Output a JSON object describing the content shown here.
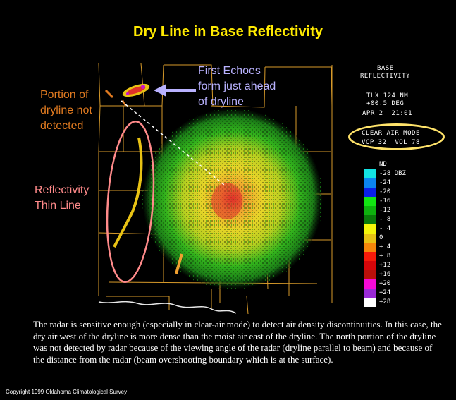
{
  "title": "Dry Line in Base Reflectivity",
  "annotations": {
    "dryline_not_detected": [
      "Portion of",
      "dryline not",
      "detected"
    ],
    "first_echoes": [
      "First Echoes",
      "form just ahead",
      "of dryline"
    ],
    "thin_line": [
      "Reflectivity",
      "Thin Line"
    ]
  },
  "radar_info": {
    "header_line1": "BASE",
    "header_line2": "REFLECTIVITY",
    "radar_id": "TLX 124 NM",
    "elevation": "+00.5 DEG",
    "datetime": "APR 2  21:01",
    "mode": "CLEAR AIR MODE",
    "vcp": "VCP 32  VOL 78"
  },
  "legend": {
    "items": [
      {
        "label": "ND",
        "color": "#000000"
      },
      {
        "label": "-28 DBZ",
        "color": "#13e3e3"
      },
      {
        "label": "-24",
        "color": "#0b84f0"
      },
      {
        "label": "-20",
        "color": "#0a1fe6"
      },
      {
        "label": "-16",
        "color": "#12e612"
      },
      {
        "label": "-12",
        "color": "#0eb20e"
      },
      {
        "label": "- 8",
        "color": "#0a7a0a"
      },
      {
        "label": "- 4",
        "color": "#f5f50a"
      },
      {
        "label": "0",
        "color": "#e8c214"
      },
      {
        "label": "+ 4",
        "color": "#f5860a"
      },
      {
        "label": "+ 8",
        "color": "#f51a0a"
      },
      {
        "label": "+12",
        "color": "#d6060a"
      },
      {
        "label": "+16",
        "color": "#b8100a"
      },
      {
        "label": "+20",
        "color": "#f50ad6"
      },
      {
        "label": "+24",
        "color": "#9a2ad6"
      },
      {
        "label": "+28",
        "color": "#ffffff"
      }
    ]
  },
  "description": "The radar is sensitive enough (especially in clear-air mode) to detect air density discontinuities.  In this case, the dry air west of the dryline is more dense than the moist air east of the dryline.  The north portion of the dryline was not detected by radar because of the viewing angle of the radar (dryline parallel to beam) and because of the distance from the radar (beam overshooting boundary which is at the surface).",
  "copyright": "Copyright 1999 Oklahoma Climatological Survey"
}
